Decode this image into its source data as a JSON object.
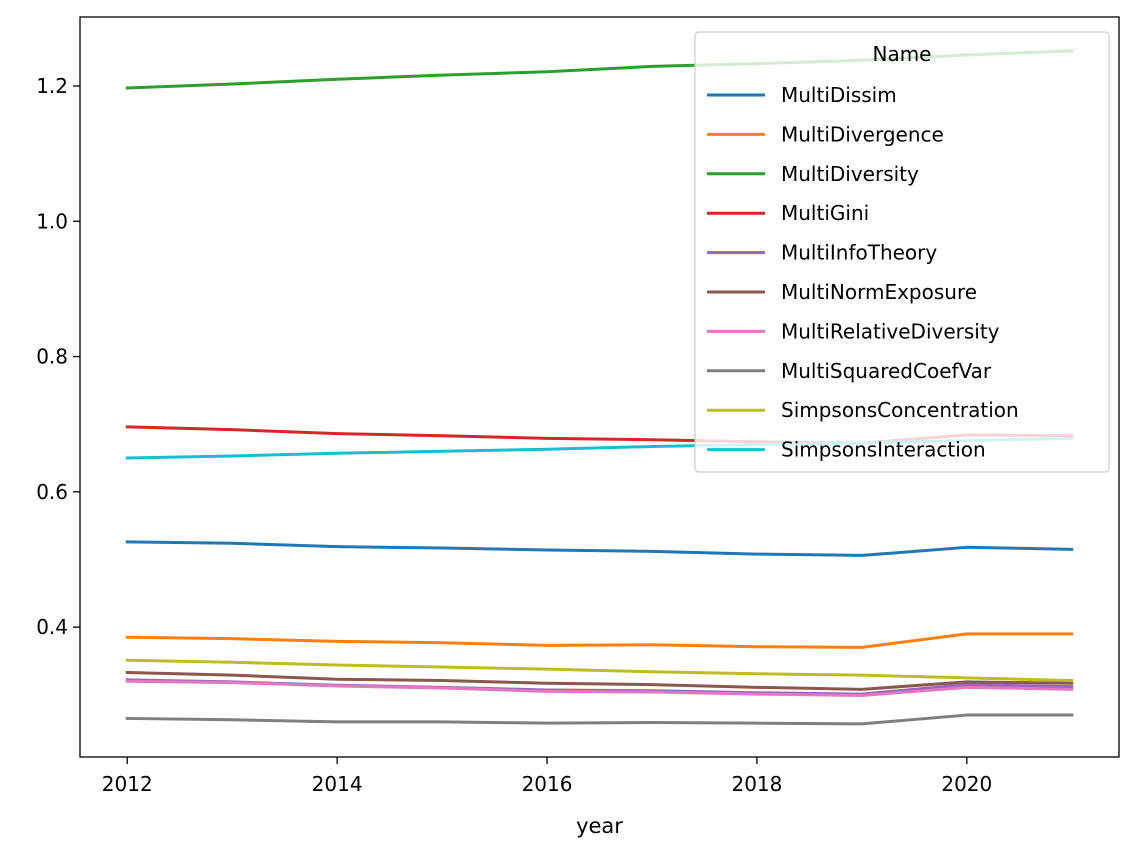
{
  "chart_data": {
    "type": "line",
    "xlabel": "year",
    "ylabel": "",
    "xlim": [
      2011.55,
      2021.45
    ],
    "ylim": [
      0.208,
      1.302
    ],
    "xticks": [
      2012,
      2014,
      2016,
      2018,
      2020
    ],
    "yticks": [
      0.4,
      0.6,
      0.8,
      1.0,
      1.2
    ],
    "xtick_labels": [
      "2012",
      "2014",
      "2016",
      "2018",
      "2020"
    ],
    "ytick_labels": [
      "0.4",
      "0.6",
      "0.8",
      "1.0",
      "1.2"
    ],
    "legend": {
      "title": "Name",
      "placement": "top-right"
    },
    "x": [
      2012,
      2013,
      2014,
      2015,
      2016,
      2017,
      2018,
      2019,
      2020,
      2021
    ],
    "series": [
      {
        "name": "MultiDissim",
        "color": "#1f77b4",
        "values": [
          0.526,
          0.524,
          0.519,
          0.517,
          0.514,
          0.512,
          0.508,
          0.506,
          0.518,
          0.515
        ]
      },
      {
        "name": "MultiDivergence",
        "color": "#ff7f0e",
        "values": [
          0.385,
          0.383,
          0.379,
          0.377,
          0.373,
          0.374,
          0.371,
          0.37,
          0.39,
          0.39
        ]
      },
      {
        "name": "MultiDiversity",
        "color": "#2ca02c",
        "values": [
          1.197,
          1.203,
          1.21,
          1.216,
          1.221,
          1.229,
          1.233,
          1.238,
          1.246,
          1.252
        ]
      },
      {
        "name": "MultiGini",
        "color": "#d62728",
        "values": [
          0.696,
          0.692,
          0.686,
          0.683,
          0.679,
          0.677,
          0.674,
          0.672,
          0.684,
          0.683
        ]
      },
      {
        "name": "MultiInfoTheory",
        "color": "#9467bd",
        "values": [
          0.322,
          0.319,
          0.314,
          0.311,
          0.307,
          0.306,
          0.303,
          0.301,
          0.315,
          0.312
        ]
      },
      {
        "name": "MultiNormExposure",
        "color": "#8c564b",
        "values": [
          0.333,
          0.329,
          0.323,
          0.321,
          0.317,
          0.315,
          0.311,
          0.308,
          0.319,
          0.317
        ]
      },
      {
        "name": "MultiRelativeDiversity",
        "color": "#e377c2",
        "values": [
          0.32,
          0.318,
          0.313,
          0.31,
          0.305,
          0.304,
          0.301,
          0.299,
          0.311,
          0.308
        ]
      },
      {
        "name": "MultiSquaredCoefVar",
        "color": "#7f7f7f",
        "values": [
          0.265,
          0.263,
          0.26,
          0.26,
          0.258,
          0.259,
          0.258,
          0.257,
          0.27,
          0.27
        ]
      },
      {
        "name": "SimpsonsConcentration",
        "color": "#bcbd22",
        "values": [
          0.351,
          0.348,
          0.344,
          0.341,
          0.338,
          0.334,
          0.331,
          0.329,
          0.325,
          0.321
        ]
      },
      {
        "name": "SimpsonsInteraction",
        "color": "#17becf",
        "values": [
          0.65,
          0.653,
          0.657,
          0.66,
          0.663,
          0.667,
          0.67,
          0.672,
          0.676,
          0.679
        ]
      }
    ]
  }
}
